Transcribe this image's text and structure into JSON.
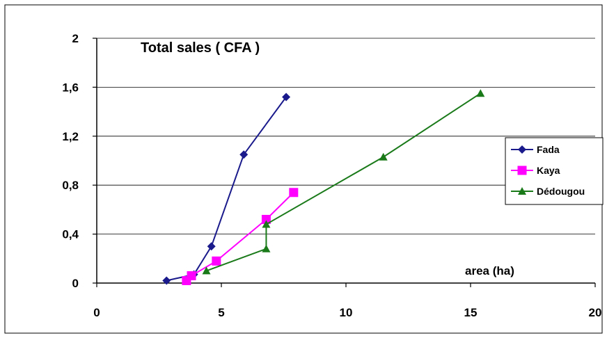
{
  "chart_data": {
    "type": "line",
    "title": "",
    "ylabel": "Total sales ( CFA )",
    "xlabel": "area (ha)",
    "xlim": [
      0,
      20
    ],
    "ylim": [
      0,
      2
    ],
    "x_ticks": [
      0,
      5,
      10,
      15,
      20
    ],
    "x_tick_labels": [
      "0",
      "5",
      "10",
      "15",
      "20"
    ],
    "y_ticks": [
      0,
      0.4,
      0.8,
      1.2,
      1.6,
      2
    ],
    "y_tick_labels": [
      "0",
      "0,4",
      "0,8",
      "1,2",
      "1,6",
      "2"
    ],
    "grid": "horizontal",
    "legend_position": "right",
    "series": [
      {
        "name": "Fada",
        "color": "#1a1a8c",
        "marker": "diamond",
        "x": [
          2.8,
          3.9,
          4.6,
          5.9,
          7.6
        ],
        "y": [
          0.02,
          0.07,
          0.3,
          1.05,
          1.52
        ]
      },
      {
        "name": "Kaya",
        "color": "#ff00ff",
        "marker": "square",
        "x": [
          3.6,
          3.8,
          4.8,
          6.8,
          7.9
        ],
        "y": [
          0.02,
          0.06,
          0.18,
          0.52,
          0.74
        ]
      },
      {
        "name": "Dédougou",
        "color": "#1a7a1a",
        "marker": "triangle",
        "x": [
          4.4,
          6.8,
          6.8,
          11.5,
          15.4
        ],
        "y": [
          0.1,
          0.28,
          0.48,
          1.03,
          1.55
        ]
      }
    ]
  }
}
